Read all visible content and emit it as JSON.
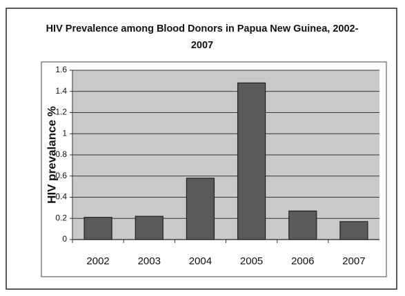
{
  "chart_data": {
    "type": "bar",
    "title": "HIV Prevalence among Blood Donors in Papua New Guinea, 2002-2007",
    "y_label": "HIV prevalance %",
    "categories": [
      "2002",
      "2003",
      "2004",
      "2005",
      "2006",
      "2007"
    ],
    "values": [
      0.21,
      0.22,
      0.58,
      1.48,
      0.27,
      0.17
    ],
    "color": "#5a5a5a",
    "ylim": [
      0,
      1.6
    ],
    "yticks": [
      0,
      0.2,
      0.4,
      0.6,
      0.8,
      1,
      1.2,
      1.4,
      1.6
    ],
    "grid": true
  }
}
